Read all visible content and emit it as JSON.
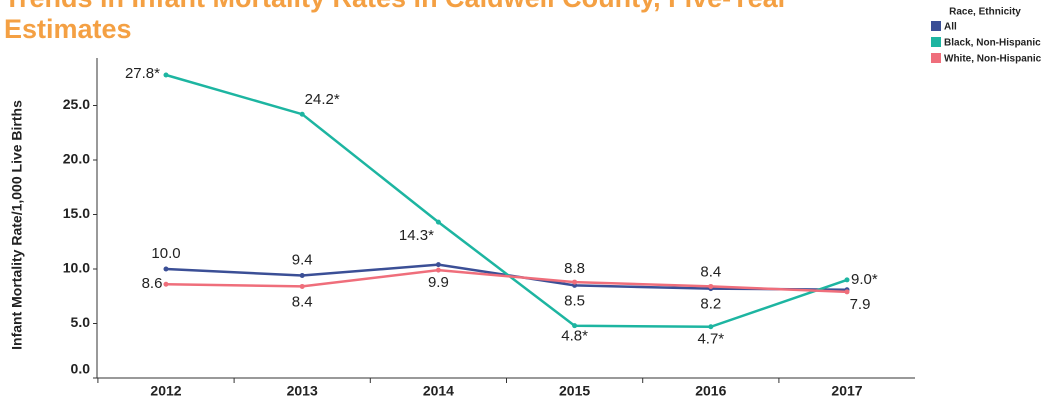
{
  "chart_data": {
    "type": "line",
    "title": "Trends in Infant Mortality Rates in Caldwell County, Five-Year Estimates",
    "y_label": "Infant Mortality Rate/1,000 Live Births",
    "legend_title": "Race, Ethnicity",
    "legend": "top-right",
    "categories": [
      "2012",
      "2013",
      "2014",
      "2015",
      "2016",
      "2017"
    ],
    "ylim": [
      0,
      30
    ],
    "yticks": [
      {
        "value": 0,
        "label": "0.0"
      },
      {
        "value": 5,
        "label": "5.0"
      },
      {
        "value": 10,
        "label": "10.0"
      },
      {
        "value": 15,
        "label": "15.0"
      },
      {
        "value": 20,
        "label": "20.0"
      },
      {
        "value": 25,
        "label": "25.0"
      }
    ],
    "series": [
      {
        "name": "All",
        "color": "#3b4f96",
        "values": [
          10.0,
          9.4,
          10.4,
          8.5,
          8.2,
          8.1
        ],
        "value_labels": [
          "10.0",
          "9.4",
          null,
          "8.5",
          "8.2",
          null
        ]
      },
      {
        "name": "Black, Non-Hispanic",
        "color": "#1db5a1",
        "values": [
          27.8,
          24.2,
          14.3,
          4.8,
          4.7,
          9.0
        ],
        "value_labels": [
          "27.8*",
          "24.2*",
          "14.3*",
          "4.8*",
          "4.7*",
          "9.0*"
        ]
      },
      {
        "name": "White, Non-Hispanic",
        "color": "#ef6e7b",
        "values": [
          8.6,
          8.4,
          9.9,
          8.8,
          8.4,
          7.9
        ],
        "value_labels": [
          "8.6",
          "8.4",
          "9.9",
          "8.8",
          "8.4",
          "7.9"
        ]
      }
    ]
  }
}
